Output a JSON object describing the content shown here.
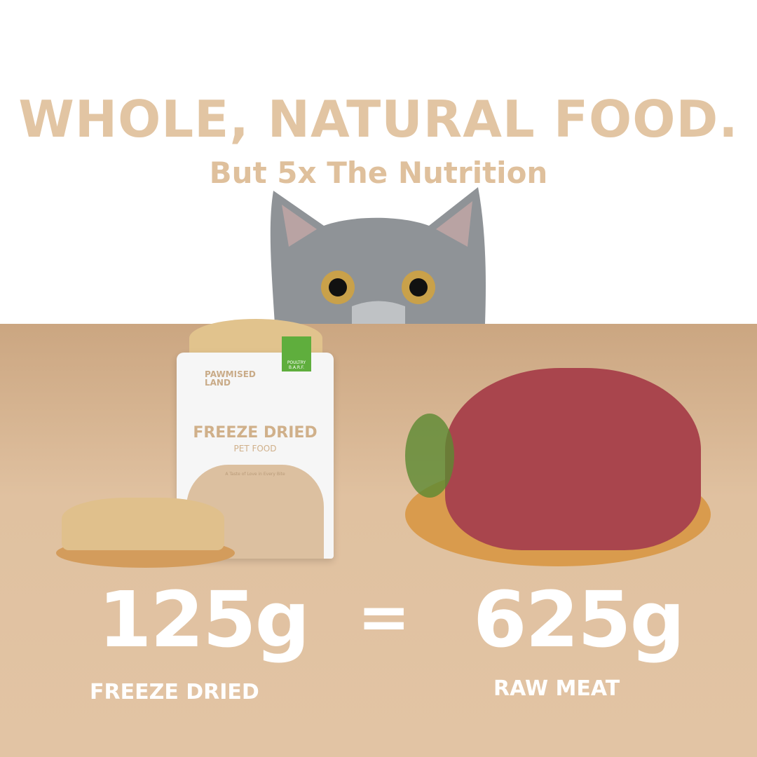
{
  "headline": "WHOLE, NATURAL FOOD.",
  "subheadline": "But 5x The Nutrition",
  "package": {
    "brand_line1": "PAWMISED",
    "brand_line2": "LAND",
    "title": "FREEZE DRIED",
    "subtitle": "PET FOOD",
    "tagline": "A Taste of Love in Every Bite",
    "badge_line1": "POULTRY",
    "badge_line2": "B.A.R.F."
  },
  "comparison": {
    "left_value": "125g",
    "left_label": "FREEZE DRIED",
    "equals": "=",
    "right_value": "625g",
    "right_label": "RAW MEAT"
  },
  "colors": {
    "headline": "#e2c5a3",
    "background_bottom": "#e0c1a0",
    "badge": "#5fae3d"
  }
}
